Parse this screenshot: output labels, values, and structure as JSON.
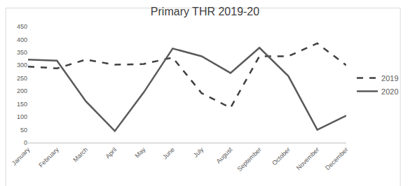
{
  "chart_data": {
    "type": "line",
    "title": "Primary THR 2019-20",
    "categories": [
      "January",
      "February",
      "March",
      "April",
      "May",
      "June",
      "July",
      "August",
      "September",
      "October",
      "November",
      "December"
    ],
    "series": [
      {
        "name": "2019",
        "color": "#404040",
        "line_style": "dashed",
        "values": [
          295,
          288,
          322,
          302,
          305,
          330,
          192,
          135,
          335,
          335,
          385,
          300
        ]
      },
      {
        "name": "2020",
        "color": "#5a5a5a",
        "line_style": "solid",
        "values": [
          322,
          318,
          160,
          45,
          195,
          365,
          335,
          270,
          368,
          258,
          50,
          105
        ]
      }
    ],
    "ylim": [
      0,
      450
    ],
    "yticks": [
      0,
      50,
      100,
      150,
      200,
      250,
      300,
      350,
      400,
      450
    ],
    "grid": false,
    "legend": "right"
  }
}
